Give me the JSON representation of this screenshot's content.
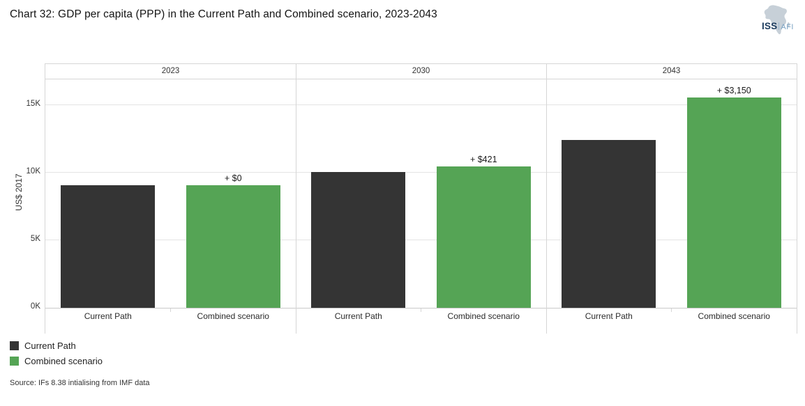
{
  "logo": {
    "org": "ISS",
    "unit": "AFI"
  },
  "source": "Source: IFs 8.38 intialising from IMF data",
  "legend": [
    {
      "label": "Current Path",
      "color": "#343434"
    },
    {
      "label": "Combined scenario",
      "color": "#55a455"
    }
  ],
  "colors": {
    "current_path": "#343434",
    "combined_scenario": "#55a455",
    "gridline": "#e4e4e4",
    "frame_border": "#d6d6d6",
    "baseline": "#c9c9c9"
  },
  "chart_data": {
    "type": "bar",
    "title": "Chart 32: GDP per capita (PPP) in the Current Path and Combined scenario, 2023-2043",
    "ylabel": "US$ 2017",
    "xlabel": "",
    "ylim": [
      0,
      16900
    ],
    "grid": "horizontal",
    "legend_position": "bottom-left",
    "yticks": [
      {
        "value": 0,
        "label": "0K"
      },
      {
        "value": 5000,
        "label": "5K"
      },
      {
        "value": 10000,
        "label": "10K"
      },
      {
        "value": 15000,
        "label": "15K"
      }
    ],
    "categories": [
      "Current Path",
      "Combined scenario"
    ],
    "facets": [
      {
        "label": "2023",
        "bars": [
          {
            "series": "Current Path",
            "value": 9050
          },
          {
            "series": "Combined scenario",
            "value": 9050,
            "annotation": "+ $0"
          }
        ]
      },
      {
        "label": "2030",
        "bars": [
          {
            "series": "Current Path",
            "value": 10050
          },
          {
            "series": "Combined scenario",
            "value": 10471,
            "annotation": "+ $421"
          }
        ]
      },
      {
        "label": "2043",
        "bars": [
          {
            "series": "Current Path",
            "value": 12400
          },
          {
            "series": "Combined scenario",
            "value": 15550,
            "annotation": "+ $3,150"
          }
        ]
      }
    ]
  }
}
